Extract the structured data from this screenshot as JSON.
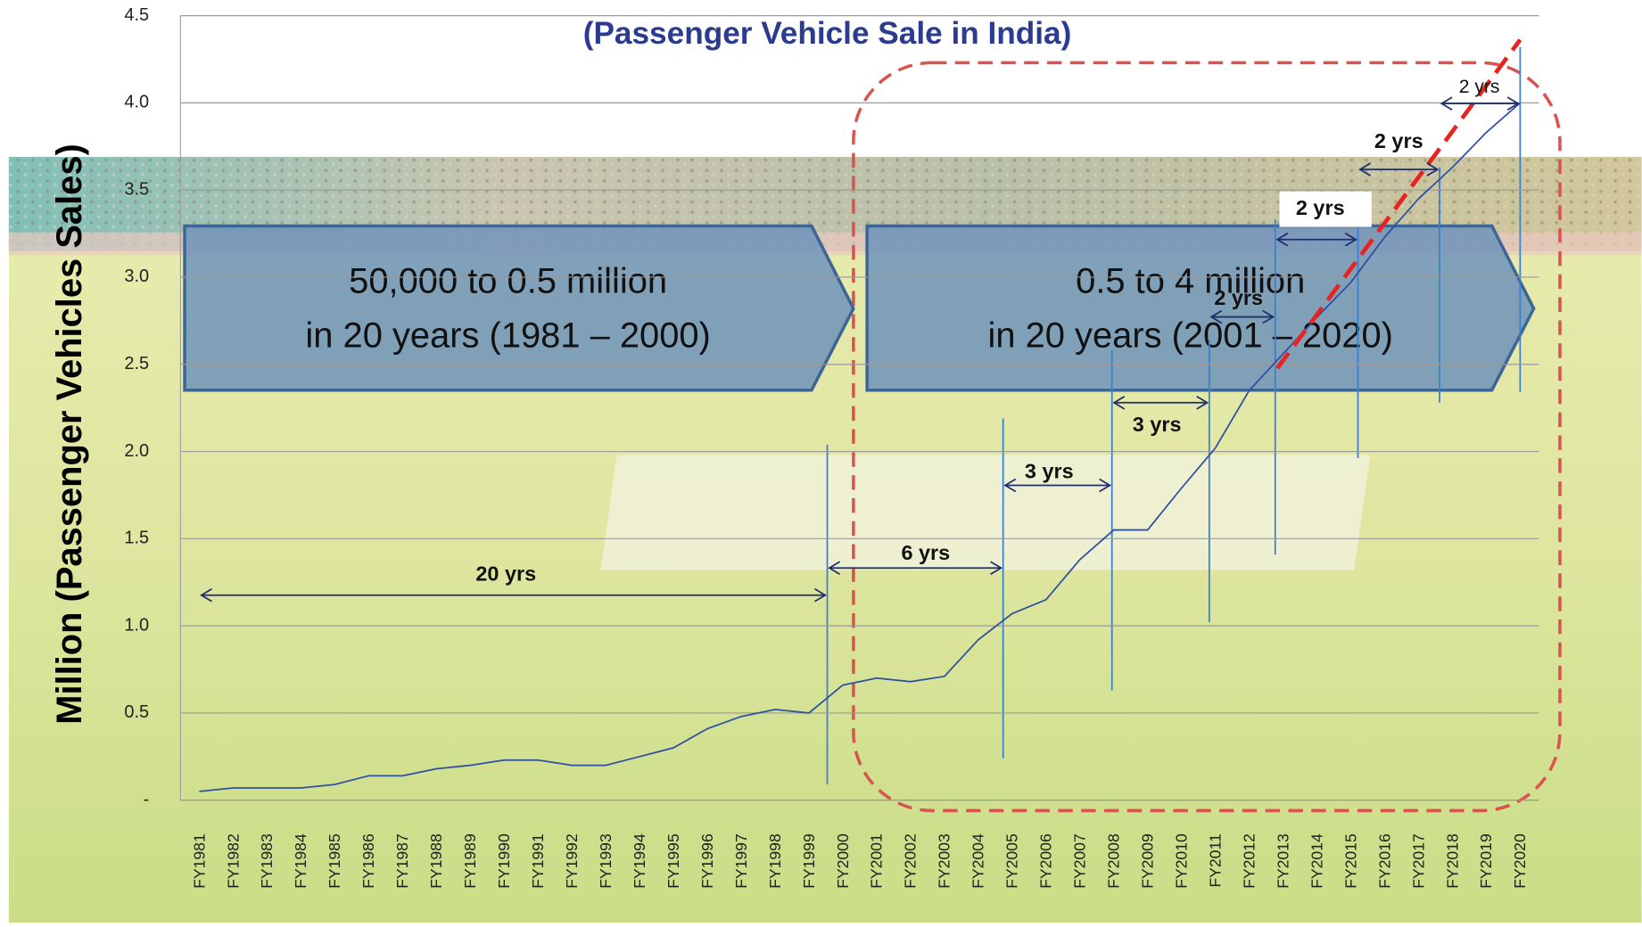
{
  "chart_data": {
    "type": "line",
    "title": "(Passenger Vehicle Sale in India)",
    "y_label": "Million (Passenger Vehicles Sales)",
    "categories": [
      "FY1981",
      "FY1982",
      "FY1983",
      "FY1984",
      "FY1985",
      "FY1986",
      "FY1987",
      "FY1988",
      "FY1989",
      "FY1990",
      "FY1991",
      "FY1992",
      "FY1993",
      "FY1994",
      "FY1995",
      "FY1996",
      "FY1997",
      "FY1998",
      "FY1999",
      "FY2000",
      "FY2001",
      "FY2002",
      "FY2003",
      "FY2004",
      "FY2005",
      "FY2006",
      "FY2007",
      "FY2008",
      "FY2009",
      "FY2010",
      "FY2011",
      "FY2012",
      "FY2013",
      "FY2014",
      "FY2015",
      "FY2016",
      "FY2017",
      "FY2018",
      "FY2019",
      "FY2020"
    ],
    "series": [
      {
        "color": "#2e4fa3",
        "values": [
          0.05,
          0.07,
          0.07,
          0.07,
          0.09,
          0.14,
          0.14,
          0.18,
          0.2,
          0.23,
          0.23,
          0.2,
          0.2,
          0.25,
          0.3,
          0.41,
          0.48,
          0.52,
          0.5,
          0.66,
          0.7,
          0.68,
          0.71,
          0.92,
          1.07,
          1.15,
          1.38,
          1.55,
          1.55,
          1.79,
          2.02,
          2.35,
          2.56,
          2.77,
          2.97,
          3.23,
          3.45,
          3.63,
          3.83,
          4.0
        ]
      }
    ],
    "ylim": [
      0,
      4.5
    ],
    "yticks": [
      {
        "value": 0,
        "label": "-"
      },
      0.5,
      {
        "value": 1,
        "label": "1.0"
      },
      1.5,
      {
        "value": 2,
        "label": "2.0"
      },
      2.5,
      {
        "value": 3,
        "label": "3.0"
      },
      3.5,
      {
        "value": 4,
        "label": "4.0"
      },
      4.5
    ],
    "grid": true,
    "boxes": [
      [
        "50,000 to 0.5 million",
        "in 20 years (1981 – 2000)"
      ],
      [
        "0.5 to 4 million",
        "in 20 years (2001 – 2020)"
      ]
    ],
    "annotations": [
      "20 yrs",
      "6 yrs",
      "3 yrs",
      "3 yrs",
      "2 yrs",
      "2 yrs",
      "2 yrs",
      "2 yrs"
    ]
  }
}
